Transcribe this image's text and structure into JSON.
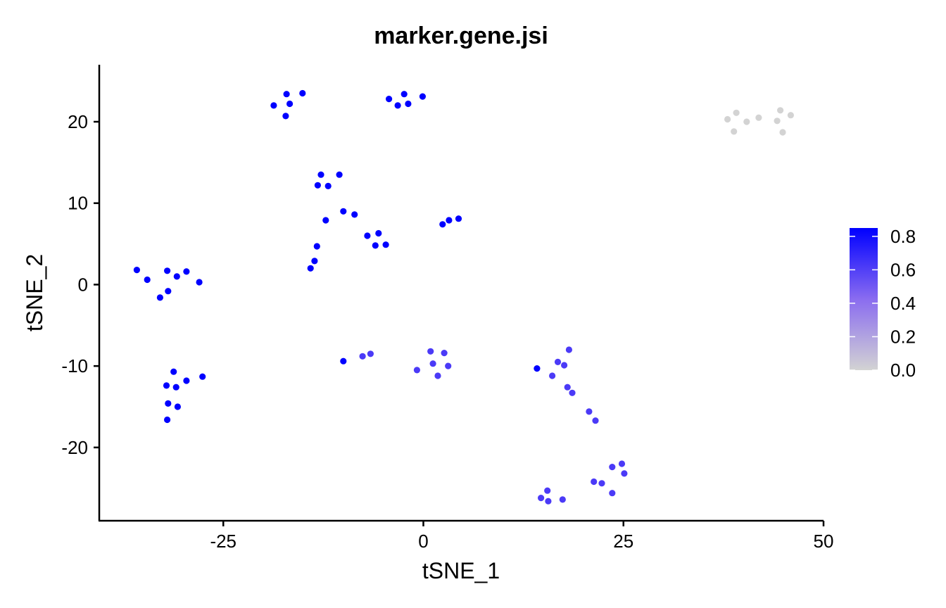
{
  "chart_data": {
    "type": "scatter",
    "title": "marker.gene.jsi",
    "xlabel": "tSNE_1",
    "ylabel": "tSNE_2",
    "xlim": [
      -40.5,
      50
    ],
    "ylim": [
      -29,
      27
    ],
    "x_ticks": [
      -25,
      0,
      25,
      50
    ],
    "y_ticks": [
      -20,
      -10,
      0,
      10,
      20
    ],
    "x_tick_labels": [
      "-25",
      "0",
      "25",
      "50"
    ],
    "y_tick_labels": [
      "-20",
      "-10",
      "0",
      "10",
      "20"
    ],
    "grid": false,
    "legend": {
      "position": "right",
      "type": "colorbar",
      "min": 0,
      "max": 0.85,
      "ticks": [
        0.0,
        0.2,
        0.4,
        0.6,
        0.8
      ],
      "tick_labels": [
        "0.0",
        "0.2",
        "0.4",
        "0.6",
        "0.8"
      ],
      "low_color": "#d3d3d3",
      "high_color": "#0000ff"
    },
    "points": [
      {
        "x": -18.7,
        "y": 22.0,
        "v": 0.85
      },
      {
        "x": -17.1,
        "y": 23.4,
        "v": 0.85
      },
      {
        "x": -16.7,
        "y": 22.2,
        "v": 0.85
      },
      {
        "x": -17.2,
        "y": 20.7,
        "v": 0.85
      },
      {
        "x": -15.1,
        "y": 23.5,
        "v": 0.85
      },
      {
        "x": -4.3,
        "y": 22.8,
        "v": 0.85
      },
      {
        "x": -2.4,
        "y": 23.4,
        "v": 0.85
      },
      {
        "x": -3.2,
        "y": 22.0,
        "v": 0.85
      },
      {
        "x": -1.9,
        "y": 22.2,
        "v": 0.85
      },
      {
        "x": -0.1,
        "y": 23.1,
        "v": 0.85
      },
      {
        "x": 38.0,
        "y": 20.3,
        "v": 0.0
      },
      {
        "x": 39.1,
        "y": 21.1,
        "v": 0.0
      },
      {
        "x": 40.4,
        "y": 20.0,
        "v": 0.0
      },
      {
        "x": 38.8,
        "y": 18.8,
        "v": 0.0
      },
      {
        "x": 41.9,
        "y": 20.5,
        "v": 0.0
      },
      {
        "x": 44.2,
        "y": 20.1,
        "v": 0.0
      },
      {
        "x": 44.6,
        "y": 21.4,
        "v": 0.0
      },
      {
        "x": 45.9,
        "y": 20.8,
        "v": 0.0
      },
      {
        "x": 44.9,
        "y": 18.7,
        "v": 0.0
      },
      {
        "x": -12.8,
        "y": 13.5,
        "v": 0.85
      },
      {
        "x": -13.2,
        "y": 12.2,
        "v": 0.85
      },
      {
        "x": -10.5,
        "y": 13.5,
        "v": 0.85
      },
      {
        "x": -11.9,
        "y": 12.1,
        "v": 0.85
      },
      {
        "x": -10.0,
        "y": 9.0,
        "v": 0.85
      },
      {
        "x": -8.6,
        "y": 8.6,
        "v": 0.85
      },
      {
        "x": -12.2,
        "y": 7.9,
        "v": 0.85
      },
      {
        "x": -13.3,
        "y": 4.7,
        "v": 0.85
      },
      {
        "x": -13.6,
        "y": 2.9,
        "v": 0.85
      },
      {
        "x": -14.1,
        "y": 2.0,
        "v": 0.85
      },
      {
        "x": -7.0,
        "y": 6.0,
        "v": 0.85
      },
      {
        "x": -5.6,
        "y": 6.3,
        "v": 0.85
      },
      {
        "x": -6.0,
        "y": 4.8,
        "v": 0.85
      },
      {
        "x": -4.7,
        "y": 4.9,
        "v": 0.85
      },
      {
        "x": 2.4,
        "y": 7.4,
        "v": 0.85
      },
      {
        "x": 3.2,
        "y": 7.9,
        "v": 0.85
      },
      {
        "x": 4.4,
        "y": 8.1,
        "v": 0.85
      },
      {
        "x": -35.8,
        "y": 1.8,
        "v": 0.85
      },
      {
        "x": -34.5,
        "y": 0.6,
        "v": 0.85
      },
      {
        "x": -32.9,
        "y": -1.6,
        "v": 0.85
      },
      {
        "x": -32.0,
        "y": 1.7,
        "v": 0.85
      },
      {
        "x": -31.9,
        "y": -0.8,
        "v": 0.85
      },
      {
        "x": -30.8,
        "y": 1.0,
        "v": 0.85
      },
      {
        "x": -29.6,
        "y": 1.6,
        "v": 0.85
      },
      {
        "x": -28.0,
        "y": 0.3,
        "v": 0.85
      },
      {
        "x": -31.2,
        "y": -10.7,
        "v": 0.85
      },
      {
        "x": -32.1,
        "y": -12.4,
        "v": 0.85
      },
      {
        "x": -30.9,
        "y": -12.6,
        "v": 0.85
      },
      {
        "x": -29.6,
        "y": -11.8,
        "v": 0.85
      },
      {
        "x": -27.6,
        "y": -11.3,
        "v": 0.85
      },
      {
        "x": -31.9,
        "y": -14.6,
        "v": 0.85
      },
      {
        "x": -30.7,
        "y": -15.0,
        "v": 0.85
      },
      {
        "x": -32.0,
        "y": -16.6,
        "v": 0.85
      },
      {
        "x": -10.0,
        "y": -9.4,
        "v": 0.85
      },
      {
        "x": -7.6,
        "y": -8.8,
        "v": 0.62
      },
      {
        "x": -6.6,
        "y": -8.5,
        "v": 0.62
      },
      {
        "x": -0.8,
        "y": -10.5,
        "v": 0.62
      },
      {
        "x": 0.9,
        "y": -8.2,
        "v": 0.62
      },
      {
        "x": 1.2,
        "y": -9.7,
        "v": 0.62
      },
      {
        "x": 1.8,
        "y": -11.2,
        "v": 0.62
      },
      {
        "x": 2.6,
        "y": -8.4,
        "v": 0.62
      },
      {
        "x": 3.1,
        "y": -10.0,
        "v": 0.62
      },
      {
        "x": 14.2,
        "y": -10.3,
        "v": 0.85
      },
      {
        "x": 16.1,
        "y": -11.2,
        "v": 0.62
      },
      {
        "x": 16.8,
        "y": -9.5,
        "v": 0.62
      },
      {
        "x": 17.6,
        "y": -9.9,
        "v": 0.62
      },
      {
        "x": 18.2,
        "y": -8.0,
        "v": 0.62
      },
      {
        "x": 18.0,
        "y": -12.6,
        "v": 0.62
      },
      {
        "x": 18.6,
        "y": -13.3,
        "v": 0.62
      },
      {
        "x": 20.7,
        "y": -15.6,
        "v": 0.62
      },
      {
        "x": 21.5,
        "y": -16.7,
        "v": 0.62
      },
      {
        "x": 23.6,
        "y": -22.4,
        "v": 0.62
      },
      {
        "x": 24.8,
        "y": -22.0,
        "v": 0.62
      },
      {
        "x": 25.1,
        "y": -23.2,
        "v": 0.62
      },
      {
        "x": 21.3,
        "y": -24.2,
        "v": 0.62
      },
      {
        "x": 22.3,
        "y": -24.4,
        "v": 0.62
      },
      {
        "x": 23.6,
        "y": -25.6,
        "v": 0.62
      },
      {
        "x": 14.7,
        "y": -26.2,
        "v": 0.62
      },
      {
        "x": 15.5,
        "y": -25.3,
        "v": 0.62
      },
      {
        "x": 15.6,
        "y": -26.6,
        "v": 0.62
      },
      {
        "x": 17.4,
        "y": -26.4,
        "v": 0.62
      }
    ]
  }
}
